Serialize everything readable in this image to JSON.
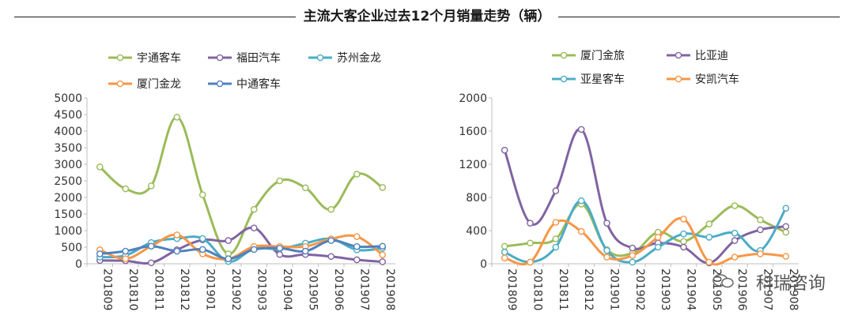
{
  "title": "主流大客企业过去12个月销量走势（辆）",
  "watermark": "科瑞咨询",
  "chart_data": [
    {
      "type": "line",
      "categories": [
        "201809",
        "201810",
        "201811",
        "201812",
        "201901",
        "201902",
        "201903",
        "201904",
        "201905",
        "201906",
        "201907",
        "201908"
      ],
      "ylim": [
        0,
        5000
      ],
      "yticks": [
        0,
        500,
        1000,
        1500,
        2000,
        2500,
        3000,
        3500,
        4000,
        4500,
        5000
      ],
      "legend_position": "top",
      "series": [
        {
          "name": "宇通客车",
          "color": "#9bbb59",
          "values": [
            2920,
            2260,
            2350,
            4420,
            2080,
            300,
            1640,
            2500,
            2290,
            1640,
            2700,
            2300
          ]
        },
        {
          "name": "福田汽车",
          "color": "#8064a2",
          "values": [
            100,
            90,
            30,
            420,
            720,
            700,
            1080,
            280,
            280,
            220,
            120,
            60
          ]
        },
        {
          "name": "苏州金龙",
          "color": "#4bacc6",
          "values": [
            200,
            250,
            640,
            760,
            760,
            70,
            450,
            450,
            620,
            750,
            420,
            470
          ]
        },
        {
          "name": "厦门金龙",
          "color": "#f79646",
          "values": [
            420,
            150,
            530,
            870,
            300,
            150,
            520,
            520,
            520,
            750,
            820,
            270
          ]
        },
        {
          "name": "中通客车",
          "color": "#4f81bd",
          "values": [
            300,
            380,
            530,
            380,
            430,
            150,
            430,
            470,
            380,
            700,
            520,
            530
          ]
        }
      ]
    },
    {
      "type": "line",
      "categories": [
        "201809",
        "201810",
        "201811",
        "201812",
        "201901",
        "201902",
        "201903",
        "201904",
        "201905",
        "201906",
        "201907",
        "201908"
      ],
      "ylim": [
        0,
        2000
      ],
      "yticks": [
        0,
        400,
        800,
        1200,
        1600,
        2000
      ],
      "legend_position": "top",
      "series": [
        {
          "name": "厦门金旅",
          "color": "#9bbb59",
          "values": [
            210,
            250,
            300,
            720,
            170,
            130,
            380,
            270,
            480,
            700,
            530,
            380
          ]
        },
        {
          "name": "比亚迪",
          "color": "#8064a2",
          "values": [
            1370,
            490,
            880,
            1620,
            490,
            190,
            250,
            200,
            10,
            280,
            410,
            450
          ]
        },
        {
          "name": "亚星客车",
          "color": "#4bacc6",
          "values": [
            140,
            20,
            200,
            760,
            160,
            20,
            200,
            360,
            320,
            370,
            160,
            670
          ]
        },
        {
          "name": "安凯汽车",
          "color": "#f79646",
          "values": [
            70,
            20,
            500,
            390,
            80,
            100,
            320,
            540,
            20,
            80,
            120,
            90
          ]
        }
      ]
    }
  ]
}
